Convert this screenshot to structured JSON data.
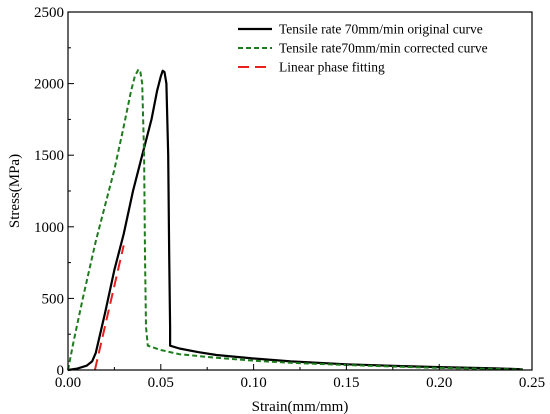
{
  "chart_data": {
    "type": "line",
    "xlabel": "Strain(mm/mm)",
    "ylabel": "Stress(MPa)",
    "xlim": [
      0.0,
      0.25
    ],
    "ylim": [
      0,
      2500
    ],
    "xticks": [
      "0.00",
      "0.05",
      "0.10",
      "0.15",
      "0.20",
      "0.25"
    ],
    "yticks": [
      "0",
      "500",
      "1000",
      "1500",
      "2000",
      "2500"
    ],
    "grid": false,
    "legend_position": "top-right",
    "series": [
      {
        "name": "Tensile rate 70mm/min original curve",
        "color": "#000000",
        "style": "solid",
        "points": [
          [
            0.0,
            0
          ],
          [
            0.005,
            10
          ],
          [
            0.01,
            30
          ],
          [
            0.013,
            60
          ],
          [
            0.015,
            120
          ],
          [
            0.02,
            400
          ],
          [
            0.025,
            700
          ],
          [
            0.03,
            950
          ],
          [
            0.035,
            1250
          ],
          [
            0.04,
            1500
          ],
          [
            0.045,
            1750
          ],
          [
            0.048,
            1950
          ],
          [
            0.05,
            2050
          ],
          [
            0.051,
            2090
          ],
          [
            0.052,
            2080
          ],
          [
            0.053,
            2000
          ],
          [
            0.054,
            1500
          ],
          [
            0.0545,
            800
          ],
          [
            0.055,
            300
          ],
          [
            0.055,
            170
          ],
          [
            0.06,
            150
          ],
          [
            0.07,
            125
          ],
          [
            0.08,
            105
          ],
          [
            0.1,
            80
          ],
          [
            0.12,
            60
          ],
          [
            0.15,
            40
          ],
          [
            0.18,
            27
          ],
          [
            0.2,
            20
          ],
          [
            0.23,
            12
          ],
          [
            0.245,
            5
          ]
        ]
      },
      {
        "name": "Tensile rate70mm/min corrected curve",
        "color": "#1e7b1e",
        "style": "dashed",
        "points": [
          [
            0.0,
            0
          ],
          [
            0.003,
            200
          ],
          [
            0.008,
            500
          ],
          [
            0.015,
            900
          ],
          [
            0.02,
            1150
          ],
          [
            0.025,
            1400
          ],
          [
            0.03,
            1700
          ],
          [
            0.034,
            1950
          ],
          [
            0.036,
            2050
          ],
          [
            0.038,
            2100
          ],
          [
            0.039,
            2080
          ],
          [
            0.04,
            2000
          ],
          [
            0.041,
            1500
          ],
          [
            0.0415,
            800
          ],
          [
            0.042,
            300
          ],
          [
            0.043,
            170
          ],
          [
            0.05,
            140
          ],
          [
            0.06,
            110
          ],
          [
            0.08,
            85
          ],
          [
            0.1,
            65
          ],
          [
            0.12,
            50
          ],
          [
            0.15,
            35
          ],
          [
            0.18,
            22
          ],
          [
            0.2,
            15
          ],
          [
            0.23,
            8
          ],
          [
            0.245,
            3
          ]
        ]
      },
      {
        "name": "Linear phase fitting",
        "color": "#e8211e",
        "style": "longdash",
        "points": [
          [
            0.0145,
            0
          ],
          [
            0.03,
            870
          ]
        ]
      }
    ]
  }
}
